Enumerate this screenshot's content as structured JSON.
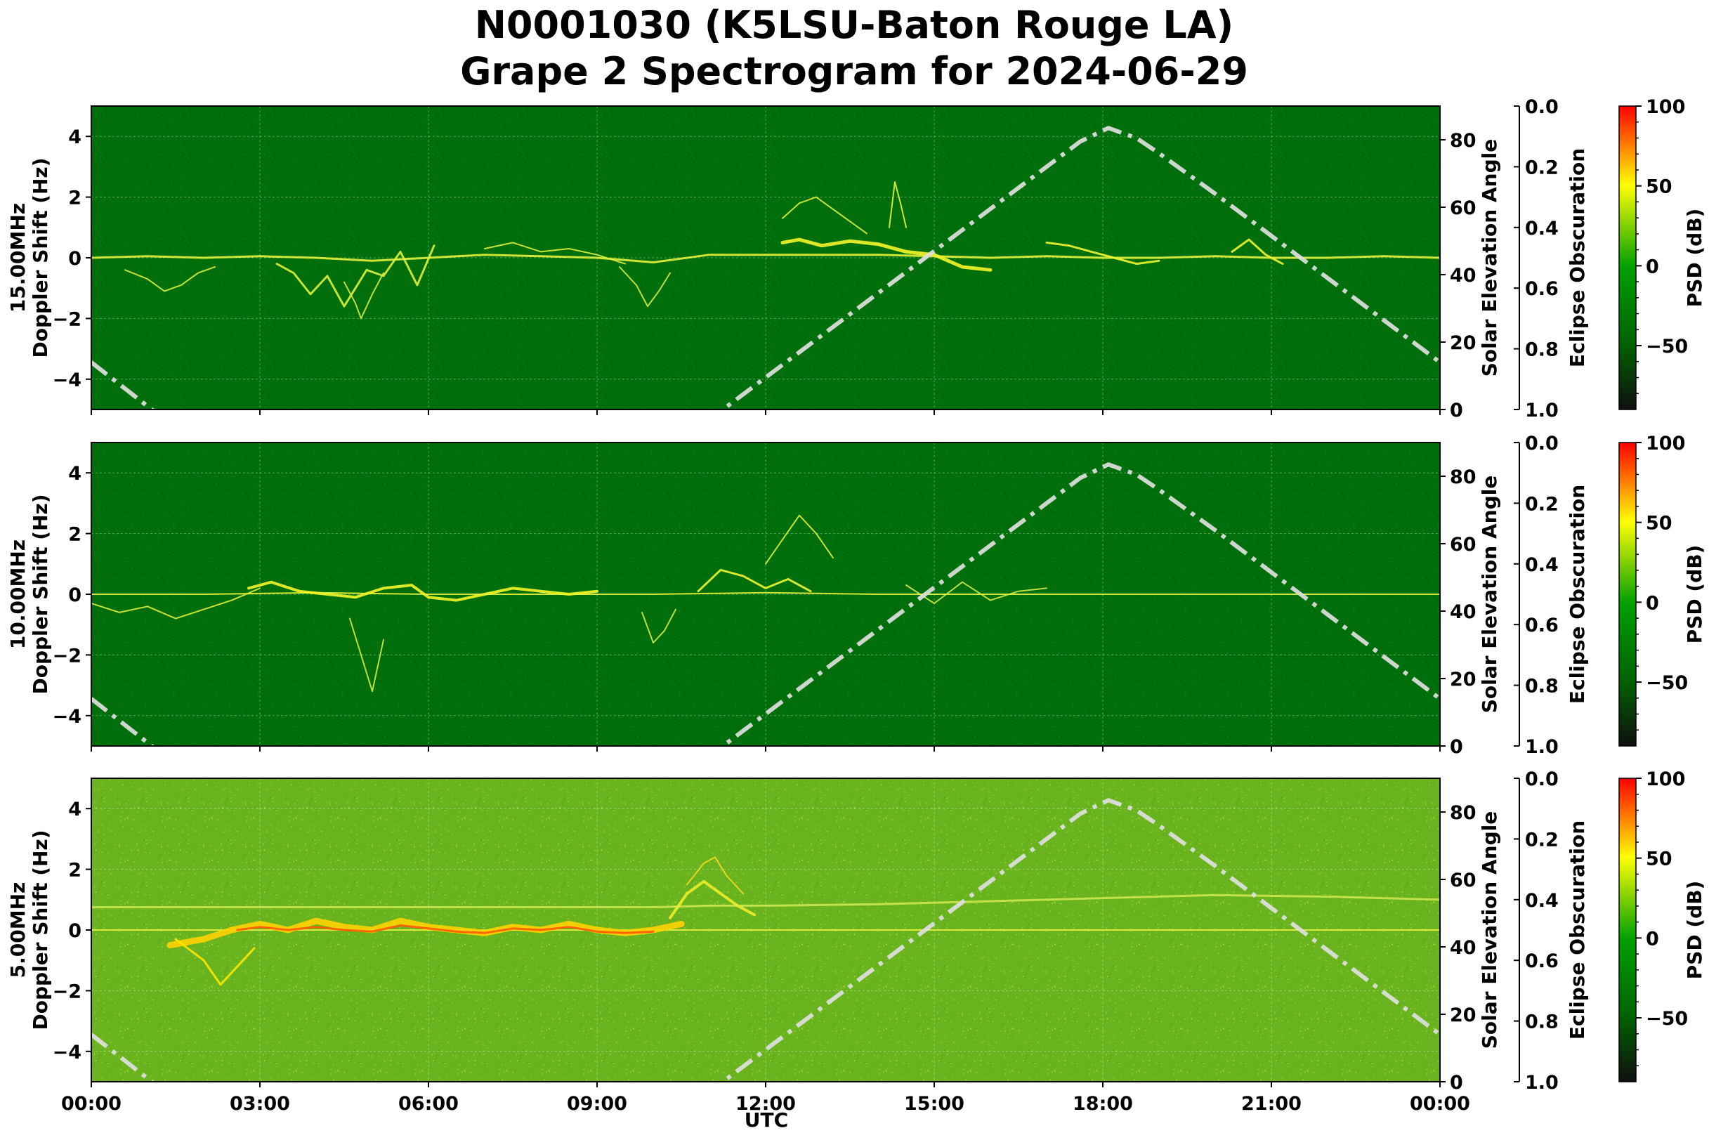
{
  "figure": {
    "title_line1": "N0001030 (K5LSU-Baton Rouge LA)",
    "title_line2": "Grape 2 Spectrogram for 2024-06-29"
  },
  "chart_data": {
    "type": "heatmap",
    "x_label": "UTC",
    "x_ticks": [
      "00:00",
      "03:00",
      "06:00",
      "09:00",
      "12:00",
      "15:00",
      "18:00",
      "21:00",
      "00:00"
    ],
    "x_range_hours": [
      0,
      24
    ],
    "y_label": "Doppler Shift (Hz)",
    "y_range": [
      -5,
      5
    ],
    "y_ticks": [
      4,
      2,
      0,
      -2,
      -4
    ],
    "grid": true,
    "right_axis": {
      "label": "Solar Elevation Angle",
      "range": [
        0,
        90
      ],
      "ticks": [
        80,
        60,
        40,
        20,
        0
      ]
    },
    "eclipse_axis": {
      "label": "Eclipse Obscuration",
      "range": [
        0,
        1
      ],
      "ticks": [
        "0.0",
        "0.2",
        "0.4",
        "0.6",
        "0.8",
        "1.0"
      ]
    },
    "colorbar": {
      "label": "PSD (dB)",
      "ticks": [
        100,
        50,
        0,
        -50
      ],
      "range": [
        -90,
        100
      ],
      "colors": [
        "#0f0f0f",
        "#006400",
        "#00a000",
        "#ffff00",
        "#ff0000"
      ]
    },
    "solar_elevation_curve": {
      "style": "dash-dot",
      "color": "#e0e0e0",
      "hours": [
        0,
        1.0,
        2.0,
        11.0,
        12.0,
        13.0,
        14.0,
        15.0,
        16.0,
        17.0,
        17.6,
        18.1,
        18.6,
        19.0,
        20.0,
        21.0,
        22.0,
        23.0,
        24.0
      ],
      "degrees": [
        14.0,
        1.0,
        -12.0,
        -3.0,
        9.5,
        22.0,
        34.5,
        47.0,
        59.5,
        72.0,
        79.5,
        83.5,
        80.5,
        76.0,
        64.0,
        51.5,
        39.0,
        26.5,
        14.0
      ]
    },
    "panels": [
      {
        "label": "15.00MHz",
        "background": "#006e0a",
        "traces": [
          {
            "color": "#e6f23c",
            "width": 3,
            "hours": [
              0,
              1,
              2,
              3,
              4,
              5,
              6,
              7,
              8,
              9,
              10,
              11,
              12,
              13,
              14,
              15,
              16,
              17,
              18,
              19,
              20,
              21,
              22,
              23,
              24
            ],
            "hz": [
              0.0,
              0.05,
              0.0,
              0.05,
              0.0,
              -0.1,
              0.0,
              0.1,
              0.05,
              0.0,
              -0.15,
              0.1,
              0.1,
              0.1,
              0.1,
              0.05,
              0.0,
              0.05,
              0.0,
              0.0,
              0.05,
              0.0,
              0.0,
              0.05,
              0.0
            ]
          },
          {
            "color": "#dcf03c",
            "width": 2,
            "hours": [
              0.6,
              1.0,
              1.3,
              1.6,
              1.9,
              2.2
            ],
            "hz": [
              -0.4,
              -0.7,
              -1.1,
              -0.9,
              -0.5,
              -0.3
            ]
          },
          {
            "color": "#dcf03c",
            "width": 3,
            "hours": [
              3.3,
              3.6,
              3.9,
              4.2,
              4.5,
              4.7,
              4.9,
              5.2,
              5.5,
              5.8,
              6.1
            ],
            "hz": [
              -0.2,
              -0.5,
              -1.2,
              -0.6,
              -1.6,
              -1.0,
              -0.4,
              -0.6,
              0.2,
              -0.9,
              0.4
            ]
          },
          {
            "color": "#d2ea46",
            "width": 2,
            "hours": [
              4.5,
              4.7,
              4.8,
              5.0,
              5.2
            ],
            "hz": [
              -0.8,
              -1.5,
              -2.0,
              -1.2,
              -0.5
            ]
          },
          {
            "color": "#dcf03c",
            "width": 2,
            "hours": [
              7.0,
              7.5,
              8.0,
              8.5,
              9.0,
              9.5
            ],
            "hz": [
              0.3,
              0.5,
              0.2,
              0.3,
              0.1,
              -0.2
            ]
          },
          {
            "color": "#d2ea46",
            "width": 2,
            "hours": [
              9.4,
              9.7,
              9.9,
              10.1,
              10.3
            ],
            "hz": [
              -0.3,
              -0.9,
              -1.6,
              -1.1,
              -0.5
            ]
          },
          {
            "color": "#f5f528",
            "width": 5,
            "hours": [
              12.3,
              12.6,
              13.0,
              13.5,
              14.0,
              14.5,
              15.0,
              15.5,
              16.0
            ],
            "hz": [
              0.5,
              0.6,
              0.4,
              0.55,
              0.45,
              0.2,
              0.1,
              -0.3,
              -0.4
            ]
          },
          {
            "color": "#dcf03c",
            "width": 2,
            "hours": [
              12.3,
              12.6,
              12.9,
              13.2,
              13.5,
              13.8
            ],
            "hz": [
              1.3,
              1.8,
              2.0,
              1.6,
              1.2,
              0.8
            ]
          },
          {
            "color": "#e6f23c",
            "width": 2,
            "hours": [
              14.2,
              14.3,
              14.4,
              14.5
            ],
            "hz": [
              1.0,
              2.5,
              1.8,
              1.0
            ]
          },
          {
            "color": "#f0f532",
            "width": 3,
            "hours": [
              17.0,
              17.4,
              17.8,
              18.2,
              18.6,
              19.0
            ],
            "hz": [
              0.5,
              0.4,
              0.2,
              0.0,
              -0.2,
              -0.1
            ]
          },
          {
            "color": "#f0f532",
            "width": 3,
            "hours": [
              20.3,
              20.6,
              20.9,
              21.2
            ],
            "hz": [
              0.2,
              0.6,
              0.1,
              -0.2
            ]
          }
        ]
      },
      {
        "label": "10.00MHz",
        "background": "#006e0a",
        "traces": [
          {
            "color": "#e6f23c",
            "width": 2,
            "hours": [
              0,
              2,
              4,
              6,
              8,
              10,
              12,
              14,
              16,
              18,
              20,
              22,
              24
            ],
            "hz": [
              0.0,
              0.0,
              0.05,
              0.0,
              0.0,
              0.0,
              0.05,
              0.0,
              0.0,
              0.0,
              0.0,
              0.0,
              0.0
            ]
          },
          {
            "color": "#dcf03c",
            "width": 2,
            "hours": [
              0,
              0.5,
              1.0,
              1.5,
              2.0,
              2.5,
              3.0
            ],
            "hz": [
              -0.3,
              -0.6,
              -0.4,
              -0.8,
              -0.5,
              -0.2,
              0.2
            ]
          },
          {
            "color": "#f5f528",
            "width": 4,
            "hours": [
              2.8,
              3.2,
              3.7,
              4.2,
              4.7,
              5.2,
              5.7,
              6.0,
              6.5,
              7.0,
              7.5,
              8.0,
              8.5,
              9.0
            ],
            "hz": [
              0.2,
              0.4,
              0.1,
              0.0,
              -0.1,
              0.2,
              0.3,
              -0.1,
              -0.2,
              0.0,
              0.2,
              0.1,
              0.0,
              0.1
            ]
          },
          {
            "color": "#d2ea46",
            "width": 2,
            "hours": [
              4.6,
              4.8,
              5.0,
              5.2
            ],
            "hz": [
              -0.8,
              -2.0,
              -3.2,
              -1.5
            ]
          },
          {
            "color": "#d2ea46",
            "width": 2,
            "hours": [
              9.8,
              10.0,
              10.2,
              10.4
            ],
            "hz": [
              -0.6,
              -1.6,
              -1.2,
              -0.5
            ]
          },
          {
            "color": "#f0f532",
            "width": 3,
            "hours": [
              10.8,
              11.2,
              11.6,
              12.0,
              12.4,
              12.8
            ],
            "hz": [
              0.1,
              0.8,
              0.6,
              0.2,
              0.5,
              0.1
            ]
          },
          {
            "color": "#dcf03c",
            "width": 2,
            "hours": [
              12.0,
              12.3,
              12.6,
              12.9,
              13.2
            ],
            "hz": [
              1.0,
              1.8,
              2.6,
              2.0,
              1.2
            ]
          },
          {
            "color": "#d2ea46",
            "width": 2,
            "hours": [
              14.5,
              15.0,
              15.5,
              16.0,
              16.5,
              17.0
            ],
            "hz": [
              0.3,
              -0.3,
              0.4,
              -0.2,
              0.1,
              0.2
            ]
          }
        ]
      },
      {
        "label": "5.00MHz",
        "background": "#69b41e",
        "traces": [
          {
            "color": "#cde650",
            "width": 3,
            "hours": [
              0,
              2,
              4,
              6,
              8,
              10,
              11,
              12,
              14,
              16,
              18,
              20,
              22,
              24
            ],
            "hz": [
              0.75,
              0.75,
              0.75,
              0.75,
              0.75,
              0.75,
              0.8,
              0.8,
              0.85,
              0.95,
              1.05,
              1.15,
              1.1,
              1.0
            ]
          },
          {
            "color": "#e6f03c",
            "width": 2,
            "hours": [
              0,
              2,
              4,
              6,
              8,
              10,
              12,
              14,
              16,
              18,
              20,
              22,
              24
            ],
            "hz": [
              0.0,
              0.0,
              0.0,
              0.0,
              0.0,
              0.0,
              0.0,
              0.0,
              0.0,
              0.0,
              0.0,
              0.0,
              0.0
            ]
          },
          {
            "color": "#ffd200",
            "width": 9,
            "hours": [
              1.4,
              2.0,
              2.5,
              3.0,
              3.5,
              4.0,
              4.5,
              5.0,
              5.5,
              6.0,
              6.5,
              7.0,
              7.5,
              8.0,
              8.5,
              9.0,
              9.5,
              10.0,
              10.5
            ],
            "hz": [
              -0.5,
              -0.3,
              0.0,
              0.2,
              0.0,
              0.3,
              0.1,
              0.0,
              0.3,
              0.1,
              0.0,
              -0.1,
              0.1,
              0.0,
              0.2,
              0.0,
              -0.1,
              0.0,
              0.2
            ]
          },
          {
            "color": "#ff5a00",
            "width": 3,
            "hours": [
              2.6,
              3.0,
              3.5,
              4.0,
              4.5,
              5.0,
              5.5,
              6.0,
              6.5,
              7.0,
              7.5,
              8.0,
              8.5,
              9.0,
              9.5,
              10.0
            ],
            "hz": [
              0.0,
              0.1,
              0.0,
              0.1,
              0.0,
              -0.05,
              0.15,
              0.05,
              -0.05,
              -0.1,
              0.05,
              0.0,
              0.1,
              -0.05,
              -0.1,
              -0.05
            ]
          },
          {
            "color": "#ffe600",
            "width": 3,
            "hours": [
              1.5,
              2.0,
              2.3,
              2.6,
              2.9
            ],
            "hz": [
              -0.3,
              -1.0,
              -1.8,
              -1.2,
              -0.6
            ]
          },
          {
            "color": "#f0ec28",
            "width": 4,
            "hours": [
              10.3,
              10.6,
              10.9,
              11.2,
              11.5,
              11.8
            ],
            "hz": [
              0.4,
              1.2,
              1.6,
              1.2,
              0.8,
              0.5
            ]
          },
          {
            "color": "#f5dc1e",
            "width": 2,
            "hours": [
              10.6,
              10.9,
              11.1,
              11.3,
              11.6
            ],
            "hz": [
              1.5,
              2.2,
              2.4,
              1.8,
              1.2
            ]
          }
        ]
      }
    ]
  }
}
